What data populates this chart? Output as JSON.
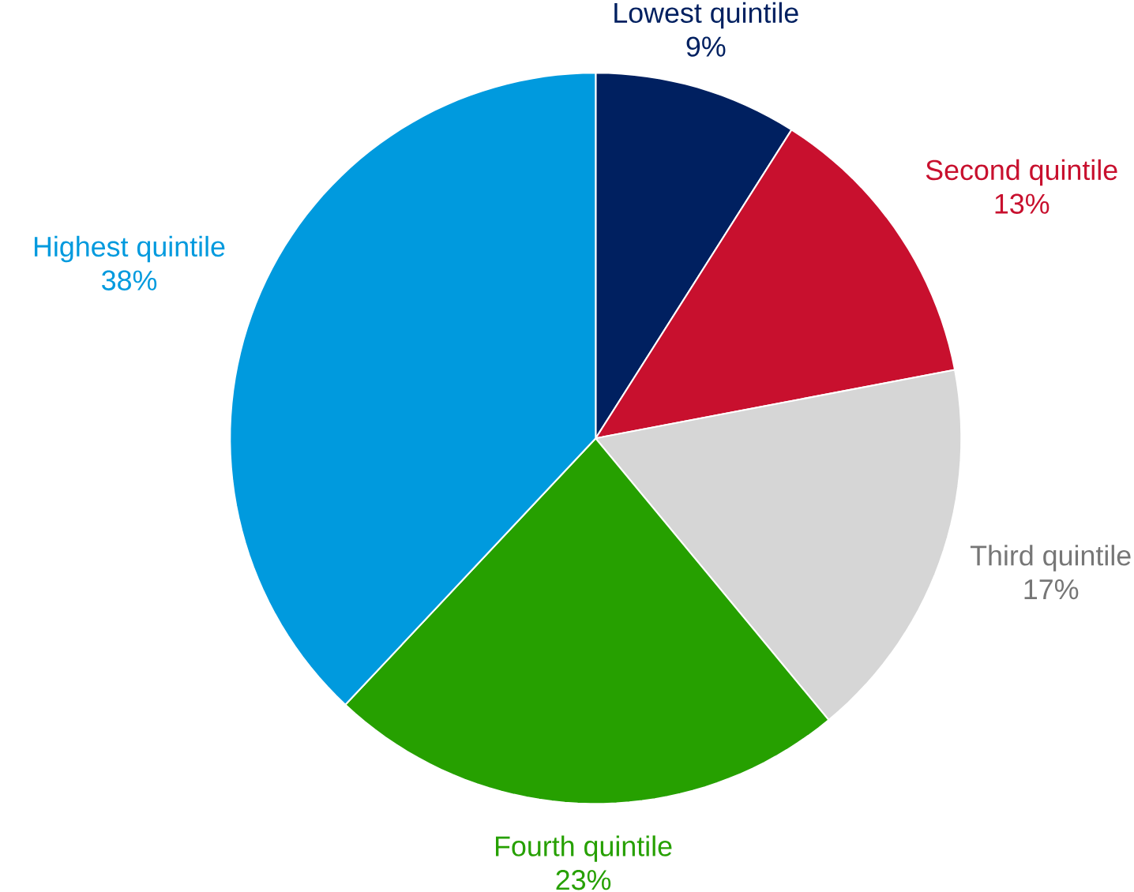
{
  "chart_data": {
    "type": "pie",
    "categories": [
      "Lowest quintile",
      "Second quintile",
      "Third quintile",
      "Fourth quintile",
      "Highest quintile"
    ],
    "values": [
      9,
      13,
      17,
      23,
      38
    ],
    "value_labels": [
      "9%",
      "13%",
      "17%",
      "23%",
      "38%"
    ],
    "colors": [
      "#002060",
      "#c8102e",
      "#d6d6d6",
      "#26a000",
      "#009ade"
    ]
  }
}
